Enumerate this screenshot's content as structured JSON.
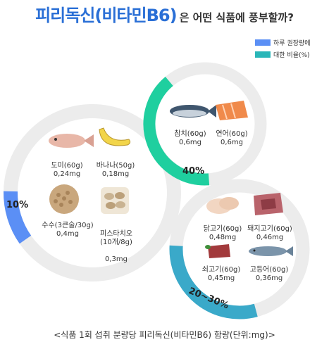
{
  "page": {
    "title_main": "피리독신(비타민B6)",
    "title_rest": "은 어떤 식품에 풍부할까?",
    "footer": "<식품 1회 섭취 분량당 피리독신(비타민B6) 함량(단위:mg)>"
  },
  "legend": [
    {
      "label": "하루 권장량에",
      "color": "#5b8ff5"
    },
    {
      "label": "대한 비율(%)",
      "color": "#2ab6b8"
    }
  ],
  "colors": {
    "ring_track": "#ececec",
    "blue": "#5b8ff5",
    "green": "#1fcf9f",
    "teal": "#3aa9c9"
  },
  "chart_data": {
    "type": "donut-infographic",
    "title": "피리독신(비타민B6)은 어떤 식품에 풍부할까?",
    "unit": "mg",
    "groups": [
      {
        "id": "g10",
        "percent_label": "10%",
        "percent_of_daily": 10,
        "foods": [
          {
            "name": "도미(60g)",
            "value_label": "0,24mg",
            "value": 0.24,
            "icon": "fish-icon"
          },
          {
            "name": "바나나(50g)",
            "value_label": "0,18mg",
            "value": 0.18,
            "icon": "banana-icon"
          },
          {
            "name": "수수(3큰술/30g)",
            "value_label": "0,4mg",
            "value": 0.4,
            "icon": "grain-icon"
          },
          {
            "name": "피스타치오\n(10개/8g)",
            "value_label": "0,3mg",
            "value": 0.3,
            "icon": "pistachio-icon"
          }
        ]
      },
      {
        "id": "g40",
        "percent_label": "40%",
        "percent_of_daily": 40,
        "foods": [
          {
            "name": "참치(60g)",
            "value_label": "0,6mg",
            "value": 0.6,
            "icon": "tuna-icon"
          },
          {
            "name": "연어(60g)",
            "value_label": "0,6mg",
            "value": 0.6,
            "icon": "salmon-icon"
          }
        ]
      },
      {
        "id": "g2030",
        "percent_label": "20~30%",
        "percent_of_daily": [
          20,
          30
        ],
        "foods": [
          {
            "name": "닭고기(60g)",
            "value_label": "0,48mg",
            "value": 0.48,
            "icon": "chicken-icon"
          },
          {
            "name": "돼지고기(60g)",
            "value_label": "0,46mg",
            "value": 0.46,
            "icon": "pork-icon"
          },
          {
            "name": "쇠고기(60g)",
            "value_label": "0,45mg",
            "value": 0.45,
            "icon": "beef-icon"
          },
          {
            "name": "고등어(60g)",
            "value_label": "0,36mg",
            "value": 0.36,
            "icon": "mackerel-icon"
          }
        ]
      }
    ]
  }
}
